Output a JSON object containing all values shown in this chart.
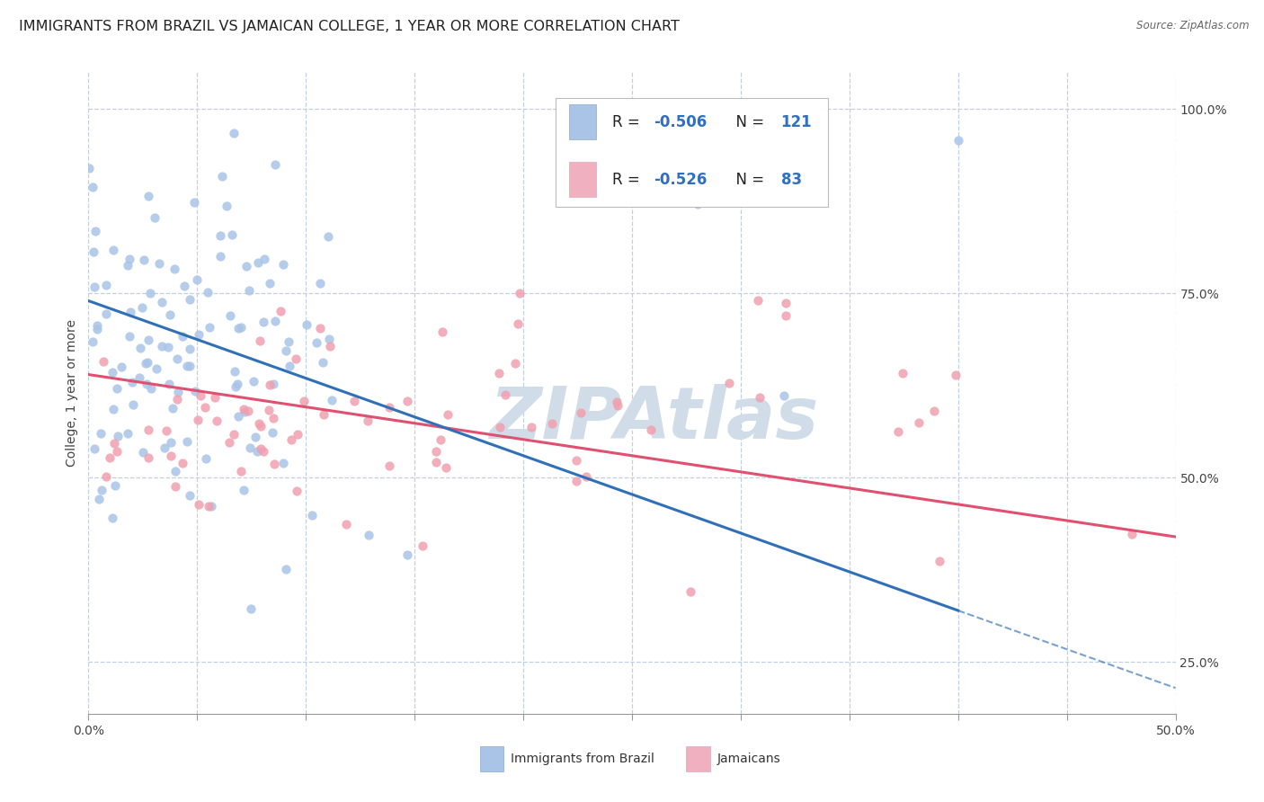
{
  "title": "IMMIGRANTS FROM BRAZIL VS JAMAICAN COLLEGE, 1 YEAR OR MORE CORRELATION CHART",
  "source_text": "Source: ZipAtlas.com",
  "ylabel": "College, 1 year or more",
  "xlim": [
    0.0,
    0.5
  ],
  "ylim": [
    0.18,
    1.05
  ],
  "xticks": [
    0.0,
    0.05,
    0.1,
    0.15,
    0.2,
    0.25,
    0.3,
    0.35,
    0.4,
    0.45,
    0.5
  ],
  "xticklabels_show": [
    "0.0%",
    "50.0%"
  ],
  "yticks": [
    0.25,
    0.5,
    0.75,
    1.0
  ],
  "yticklabels": [
    "25.0%",
    "50.0%",
    "75.0%",
    "100.0%"
  ],
  "brazil_R": -0.506,
  "brazil_N": 121,
  "jamaica_R": -0.526,
  "jamaica_N": 83,
  "brazil_color": "#aac4e8",
  "jamaica_color": "#f0a0b0",
  "brazil_line_color": "#3070b8",
  "jamaica_line_color": "#e05070",
  "brazil_legend_color": "#aac4e8",
  "jamaica_legend_color": "#f0b0c0",
  "background_color": "#ffffff",
  "grid_color": "#c0d0e0",
  "watermark_text": "ZIPAtlas",
  "watermark_color": "#d0dde8",
  "title_fontsize": 11.5,
  "axis_label_fontsize": 10,
  "tick_fontsize": 10,
  "legend_fontsize": 12
}
